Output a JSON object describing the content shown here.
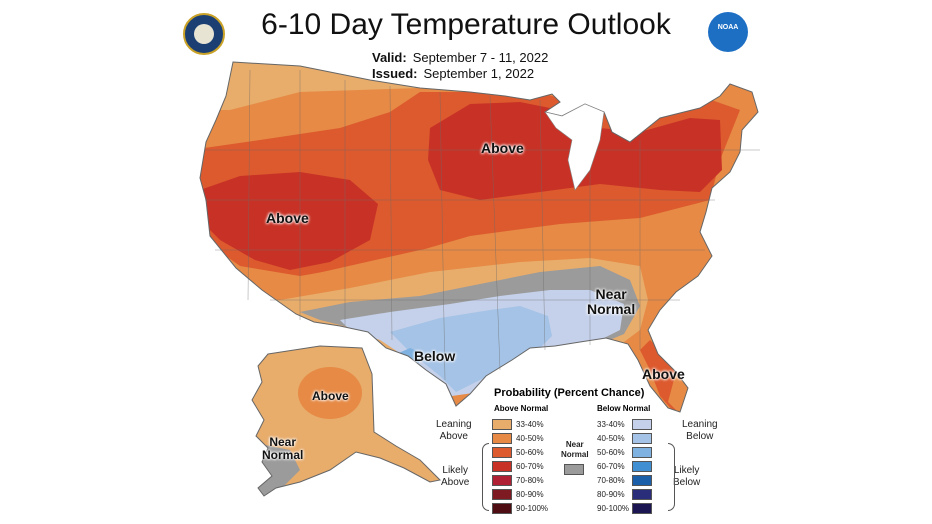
{
  "header": {
    "title": "6-10 Day Temperature Outlook",
    "valid_label": "Valid:",
    "valid_value": "September 7 - 11, 2022",
    "issued_label": "Issued:",
    "issued_value": "September 1, 2022"
  },
  "logos": {
    "left": "Department of Commerce seal",
    "right": "NOAA",
    "left_icon": "commerce-seal-icon",
    "right_icon": "noaa-logo-icon"
  },
  "map_labels": {
    "west_above": "Above",
    "midwest_above": "Above",
    "southeast_near_line1": "Near",
    "southeast_near_line2": "Normal",
    "texas_below": "Below",
    "florida_above": "Above",
    "alaska_above": "Above",
    "alaska_near_line1": "Near",
    "alaska_near_line2": "Normal"
  },
  "legend": {
    "title": "Probability (Percent Chance)",
    "above_header": "Above Normal",
    "below_header": "Below Normal",
    "near_label_line1": "Near",
    "near_label_line2": "Normal",
    "leaning_above_line1": "Leaning",
    "leaning_above_line2": "Above",
    "likely_above_line1": "Likely",
    "likely_above_line2": "Above",
    "leaning_below_line1": "Leaning",
    "leaning_below_line2": "Below",
    "likely_below_line1": "Likely",
    "likely_below_line2": "Below",
    "above": [
      {
        "range": "33-40%",
        "color": "#e8ac6b"
      },
      {
        "range": "40-50%",
        "color": "#e68a45"
      },
      {
        "range": "50-60%",
        "color": "#dc5a2e"
      },
      {
        "range": "60-70%",
        "color": "#c83226"
      },
      {
        "range": "70-80%",
        "color": "#b02035"
      },
      {
        "range": "80-90%",
        "color": "#7e1a22"
      },
      {
        "range": "90-100%",
        "color": "#4e0d13"
      }
    ],
    "below": [
      {
        "range": "33-40%",
        "color": "#c5d1ea"
      },
      {
        "range": "40-50%",
        "color": "#a5c3e6"
      },
      {
        "range": "50-60%",
        "color": "#7fb2e0"
      },
      {
        "range": "60-70%",
        "color": "#3f8fd2"
      },
      {
        "range": "70-80%",
        "color": "#1a5fa8"
      },
      {
        "range": "80-90%",
        "color": "#2a2e7a"
      },
      {
        "range": "90-100%",
        "color": "#1b1652"
      }
    ],
    "near_color": "#9b9b9b"
  }
}
